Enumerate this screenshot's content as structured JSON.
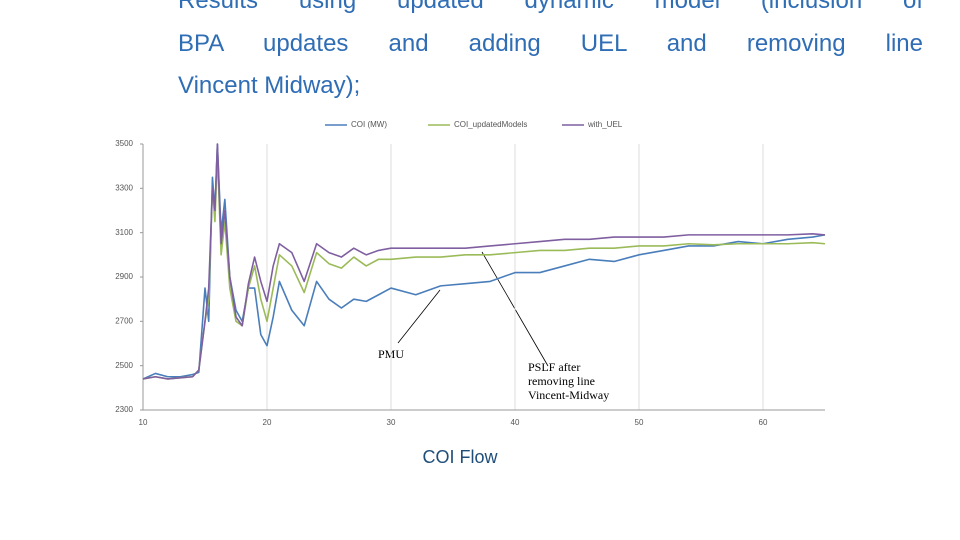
{
  "heading": [
    "Results using updated dynamic model (inclusion of",
    "BPA updates and adding UEL and removing line",
    "Vincent Midway);"
  ],
  "caption": "COI Flow",
  "chart_data": {
    "type": "line",
    "x": [
      10,
      11,
      12,
      13,
      14,
      14.5,
      15,
      15.3,
      15.6,
      15.8,
      16,
      16.3,
      16.6,
      17,
      17.5,
      18,
      18.5,
      19,
      19.5,
      20,
      20.5,
      21,
      22,
      23,
      24,
      25,
      26,
      27,
      28,
      29,
      30,
      32,
      34,
      36,
      38,
      40,
      42,
      44,
      46,
      48,
      50,
      52,
      54,
      56,
      58,
      60,
      62,
      64,
      65
    ],
    "series": [
      {
        "name": "COI (MW)",
        "color": "#4a7ebb",
        "values": [
          2440,
          2465,
          2450,
          2450,
          2460,
          2470,
          2850,
          2700,
          3350,
          3200,
          3500,
          3100,
          3250,
          2900,
          2750,
          2700,
          2850,
          2850,
          2640,
          2590,
          2720,
          2880,
          2750,
          2680,
          2880,
          2800,
          2760,
          2800,
          2790,
          2820,
          2850,
          2820,
          2860,
          2870,
          2880,
          2920,
          2920,
          2950,
          2980,
          2970,
          3000,
          3020,
          3040,
          3040,
          3060,
          3050,
          3070,
          3080,
          3090
        ]
      },
      {
        "name": "COI_updatedModels",
        "color": "#9bbb59",
        "values": [
          2440,
          2450,
          2440,
          2445,
          2450,
          2480,
          2700,
          2800,
          3300,
          3150,
          3450,
          3000,
          3150,
          2850,
          2700,
          2680,
          2850,
          2950,
          2800,
          2700,
          2850,
          3000,
          2950,
          2830,
          3010,
          2960,
          2940,
          2990,
          2950,
          2980,
          2980,
          2990,
          2990,
          3000,
          3000,
          3010,
          3020,
          3020,
          3030,
          3030,
          3040,
          3040,
          3050,
          3045,
          3050,
          3050,
          3050,
          3055,
          3050
        ]
      },
      {
        "name": "with_UEL",
        "color": "#7f5fa0",
        "values": [
          2440,
          2450,
          2440,
          2445,
          2450,
          2480,
          2700,
          2850,
          3300,
          3200,
          3500,
          3050,
          3200,
          2900,
          2720,
          2680,
          2870,
          2990,
          2880,
          2790,
          2950,
          3050,
          3010,
          2880,
          3050,
          3010,
          2990,
          3030,
          3000,
          3020,
          3030,
          3030,
          3030,
          3030,
          3040,
          3050,
          3060,
          3070,
          3070,
          3080,
          3080,
          3080,
          3090,
          3090,
          3090,
          3090,
          3090,
          3095,
          3090
        ]
      }
    ],
    "xlim": [
      10,
      65
    ],
    "xticks": [
      10,
      20,
      30,
      40,
      50,
      60
    ],
    "ylim": [
      2300,
      3500
    ],
    "yticks": [
      2300,
      2500,
      2700,
      2900,
      3100,
      3300,
      3500
    ],
    "grid": true,
    "legend": "top",
    "annotations": [
      "PMU",
      "PSLF after",
      "removing line",
      "Vincent-Midway"
    ]
  }
}
